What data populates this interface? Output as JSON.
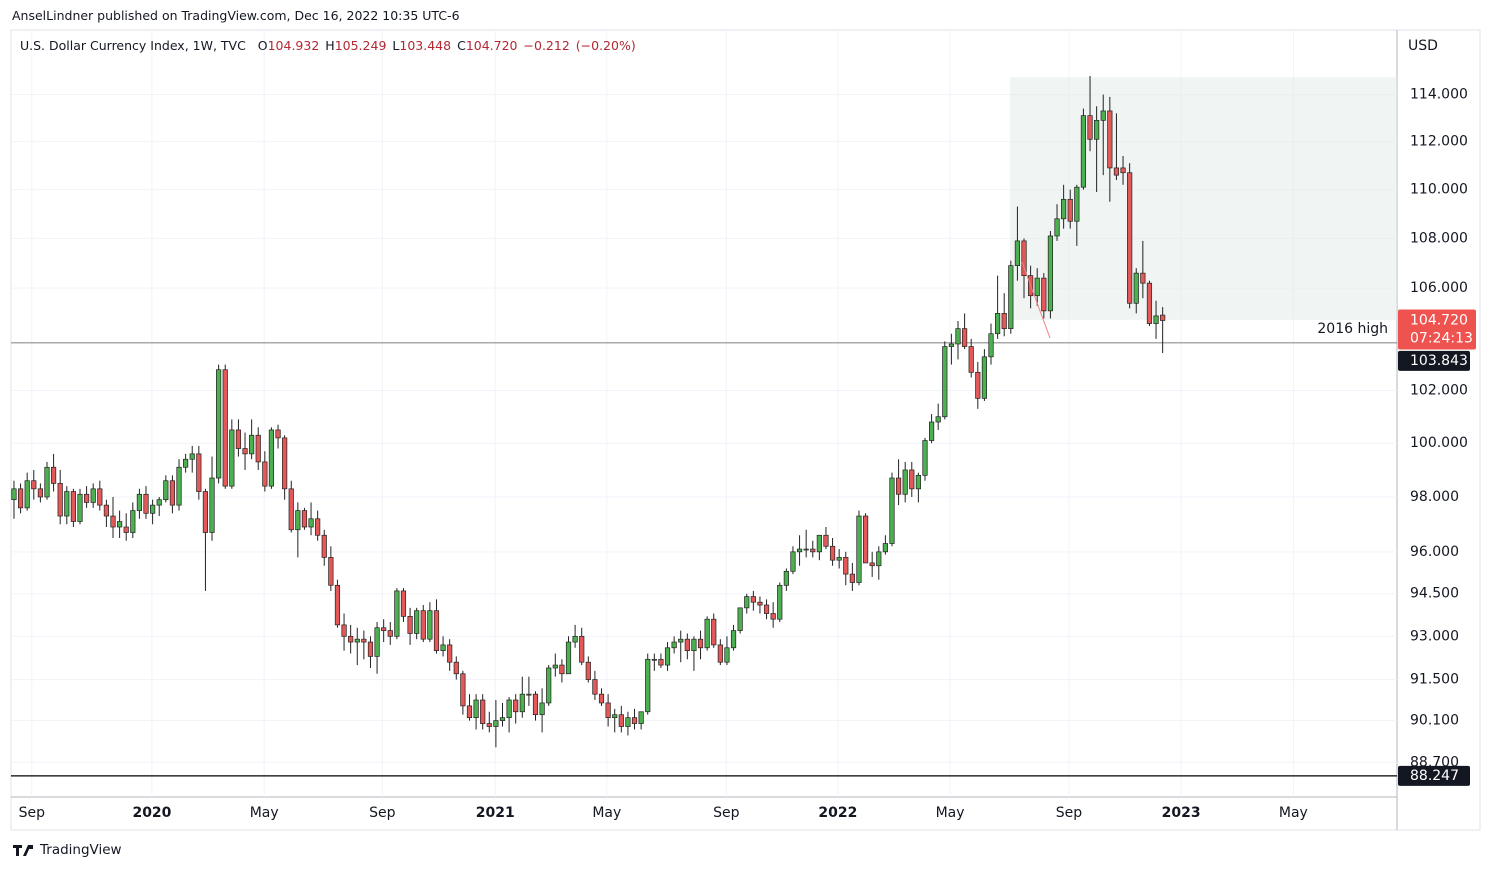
{
  "header": {
    "publisher": "AnselLindner published on TradingView.com, Dec 16, 2022 10:35 UTC-6"
  },
  "footer": {
    "brand": "TradingView"
  },
  "chart_data": {
    "type": "candlestick",
    "title": "U.S. Dollar Currency Index, 1W, TVC",
    "legend": [
      {
        "key": "O",
        "value": 104.932
      },
      {
        "key": "H",
        "value": 105.249
      },
      {
        "key": "L",
        "value": 103.448
      },
      {
        "key": "C",
        "value": {
          "value": 104.72,
          "label": "104.720"
        }
      }
    ],
    "change": {
      "value": -0.212,
      "label": "−0.212"
    },
    "change_pct": {
      "value": -0.2,
      "label": "(−0.20%)"
    },
    "currency": "USD",
    "yscale": "log",
    "grid": true,
    "up_color": "#4caf50",
    "down_color": "#e35858",
    "ylim": [
      87.55,
      116.8
    ],
    "yticks": [
      {
        "value": 88.7,
        "label": "88.700"
      },
      {
        "value": 90.1,
        "label": "90.100"
      },
      {
        "value": 91.5,
        "label": "91.500"
      },
      {
        "value": 93,
        "label": "93.000"
      },
      {
        "value": 94.5,
        "label": "94.500"
      },
      {
        "value": 96,
        "label": "96.000"
      },
      {
        "value": 98,
        "label": "98.000"
      },
      {
        "value": 100,
        "label": "100.000"
      },
      {
        "value": 102,
        "label": "102.000"
      },
      {
        "value": 106,
        "label": "106.000"
      },
      {
        "value": 108,
        "label": "108.000"
      },
      {
        "value": 110,
        "label": "110.000"
      },
      {
        "value": 112,
        "label": "112.000"
      },
      {
        "value": 114,
        "label": "114.000"
      }
    ],
    "xlim": [
      -0.3,
      209.5
    ],
    "xticks": [
      {
        "value": 2.7,
        "label": "Sep"
      },
      {
        "value": 20.9,
        "label": "2020"
      },
      {
        "value": 37.9,
        "label": "May"
      },
      {
        "value": 55.8,
        "label": "Sep"
      },
      {
        "value": 72.9,
        "label": "2021"
      },
      {
        "value": 89.8,
        "label": "May"
      },
      {
        "value": 107.9,
        "label": "Sep"
      },
      {
        "value": 124.8,
        "label": "2022"
      },
      {
        "value": 141.8,
        "label": "May"
      },
      {
        "value": 159.8,
        "label": "Sep"
      },
      {
        "value": 176.8,
        "label": "2023"
      },
      {
        "value": 193.8,
        "label": "May"
      }
    ],
    "last_price": {
      "value": 104.72,
      "label": "104.720"
    },
    "countdown": "07:24:13",
    "price_lines": [
      {
        "value": 103.843,
        "label": "103.843",
        "annotation": "2016 high"
      },
      {
        "value": 88.247,
        "label": "88.247"
      }
    ],
    "zone": {
      "xlim": [
        150.9,
        209.5
      ],
      "ylim": [
        104.75,
        114.75
      ]
    },
    "candles": [
      [
        97.9,
        98.6,
        97.2,
        98.3
      ],
      [
        98.3,
        98.5,
        97.4,
        97.6
      ],
      [
        97.6,
        98.9,
        97.5,
        98.6
      ],
      [
        98.6,
        99.0,
        97.9,
        98.3
      ],
      [
        98.3,
        98.5,
        97.8,
        98.0
      ],
      [
        98.0,
        99.3,
        97.9,
        99.1
      ],
      [
        99.1,
        99.6,
        98.2,
        98.5
      ],
      [
        98.5,
        99.0,
        97.0,
        97.3
      ],
      [
        97.3,
        98.4,
        97.0,
        98.2
      ],
      [
        98.2,
        98.3,
        96.9,
        97.1
      ],
      [
        97.1,
        98.3,
        97.0,
        98.1
      ],
      [
        98.1,
        98.4,
        97.6,
        97.8
      ],
      [
        97.8,
        98.5,
        97.6,
        98.3
      ],
      [
        98.3,
        98.6,
        97.5,
        97.7
      ],
      [
        97.7,
        97.9,
        96.9,
        97.3
      ],
      [
        97.3,
        98.0,
        96.5,
        96.9
      ],
      [
        96.9,
        97.5,
        96.5,
        97.1
      ],
      [
        96.9,
        97.4,
        96.4,
        96.7
      ],
      [
        96.7,
        97.8,
        96.5,
        97.5
      ],
      [
        97.5,
        98.3,
        97.2,
        98.1
      ],
      [
        98.1,
        98.4,
        97.2,
        97.4
      ],
      [
        97.4,
        97.9,
        97.0,
        97.7
      ],
      [
        97.7,
        98.0,
        97.3,
        97.9
      ],
      [
        97.9,
        98.8,
        97.8,
        98.6
      ],
      [
        98.6,
        98.8,
        97.4,
        97.7
      ],
      [
        97.7,
        99.4,
        97.5,
        99.1
      ],
      [
        99.1,
        99.6,
        98.9,
        99.4
      ],
      [
        99.4,
        99.9,
        98.9,
        99.6
      ],
      [
        99.6,
        99.9,
        97.9,
        98.2
      ],
      [
        98.2,
        98.3,
        94.6,
        96.7
      ],
      [
        96.7,
        99.5,
        96.4,
        98.7
      ],
      [
        98.7,
        103.0,
        98.5,
        102.8
      ],
      [
        102.8,
        103.0,
        98.3,
        98.4
      ],
      [
        98.4,
        100.9,
        98.3,
        100.5
      ],
      [
        100.5,
        100.9,
        99.5,
        99.8
      ],
      [
        99.8,
        100.4,
        99.0,
        99.6
      ],
      [
        99.6,
        100.9,
        99.4,
        100.3
      ],
      [
        100.3,
        100.6,
        99.0,
        99.3
      ],
      [
        99.3,
        99.7,
        98.2,
        98.4
      ],
      [
        98.4,
        100.6,
        98.3,
        100.5
      ],
      [
        100.5,
        100.7,
        99.8,
        100.2
      ],
      [
        100.2,
        100.3,
        97.9,
        98.3
      ],
      [
        98.3,
        98.6,
        96.7,
        96.8
      ],
      [
        96.8,
        97.8,
        95.8,
        97.5
      ],
      [
        97.5,
        97.6,
        96.8,
        96.9
      ],
      [
        96.9,
        97.8,
        96.6,
        97.2
      ],
      [
        97.2,
        97.5,
        96.4,
        96.6
      ],
      [
        96.6,
        96.8,
        95.5,
        95.8
      ],
      [
        95.8,
        96.2,
        94.6,
        94.8
      ],
      [
        94.8,
        95.0,
        93.3,
        93.4
      ],
      [
        93.4,
        93.8,
        92.5,
        93.0
      ],
      [
        93.0,
        93.4,
        92.4,
        92.8
      ],
      [
        92.8,
        93.3,
        92.0,
        92.9
      ],
      [
        92.9,
        93.2,
        92.2,
        92.8
      ],
      [
        92.8,
        93.0,
        91.9,
        92.3
      ],
      [
        92.3,
        93.5,
        91.7,
        93.3
      ],
      [
        93.3,
        93.6,
        92.8,
        93.2
      ],
      [
        93.2,
        93.5,
        92.7,
        93.0
      ],
      [
        93.0,
        94.7,
        92.9,
        94.6
      ],
      [
        94.6,
        94.7,
        93.5,
        93.7
      ],
      [
        93.7,
        94.0,
        92.7,
        93.1
      ],
      [
        93.1,
        94.0,
        92.9,
        93.9
      ],
      [
        93.9,
        94.1,
        92.8,
        92.9
      ],
      [
        92.9,
        94.2,
        92.8,
        93.9
      ],
      [
        93.9,
        94.3,
        92.4,
        92.5
      ],
      [
        92.5,
        93.0,
        92.3,
        92.7
      ],
      [
        92.7,
        92.9,
        91.8,
        92.1
      ],
      [
        92.1,
        92.3,
        91.5,
        91.7
      ],
      [
        91.7,
        91.8,
        90.3,
        90.6
      ],
      [
        90.6,
        91.0,
        90.1,
        90.2
      ],
      [
        90.2,
        91.0,
        89.8,
        90.8
      ],
      [
        90.8,
        91.0,
        89.8,
        90.0
      ],
      [
        90.0,
        90.4,
        89.7,
        89.9
      ],
      [
        89.9,
        90.8,
        89.2,
        90.1
      ],
      [
        90.1,
        90.7,
        89.9,
        90.2
      ],
      [
        90.2,
        90.9,
        89.7,
        90.8
      ],
      [
        90.8,
        91.0,
        90.0,
        90.4
      ],
      [
        90.4,
        91.6,
        90.2,
        91.0
      ],
      [
        91.0,
        91.6,
        90.6,
        91.0
      ],
      [
        91.0,
        91.1,
        90.1,
        90.3
      ],
      [
        90.3,
        91.2,
        89.7,
        90.7
      ],
      [
        90.7,
        92.0,
        90.6,
        91.9
      ],
      [
        91.9,
        92.4,
        91.6,
        92.0
      ],
      [
        92.0,
        92.2,
        91.4,
        91.7
      ],
      [
        91.7,
        93.0,
        91.7,
        92.8
      ],
      [
        92.8,
        93.4,
        92.6,
        93.0
      ],
      [
        93.0,
        93.3,
        92.0,
        92.1
      ],
      [
        92.1,
        92.3,
        91.4,
        91.5
      ],
      [
        91.5,
        91.8,
        90.8,
        91.0
      ],
      [
        91.0,
        91.2,
        90.6,
        90.7
      ],
      [
        90.7,
        91.0,
        89.9,
        90.2
      ],
      [
        90.2,
        90.5,
        89.7,
        90.3
      ],
      [
        90.3,
        90.6,
        89.7,
        89.9
      ],
      [
        89.9,
        90.4,
        89.6,
        90.2
      ],
      [
        90.2,
        90.5,
        89.8,
        90.0
      ],
      [
        90.0,
        90.4,
        89.8,
        90.4
      ],
      [
        90.4,
        92.4,
        90.3,
        92.2
      ],
      [
        92.2,
        92.4,
        91.8,
        92.2
      ],
      [
        92.2,
        92.4,
        91.9,
        92.0
      ],
      [
        92.0,
        92.8,
        91.8,
        92.6
      ],
      [
        92.6,
        93.0,
        92.4,
        92.8
      ],
      [
        92.8,
        93.2,
        92.1,
        92.9
      ],
      [
        92.9,
        93.1,
        92.2,
        92.5
      ],
      [
        92.5,
        93.0,
        91.8,
        92.9
      ],
      [
        92.9,
        93.2,
        92.2,
        92.6
      ],
      [
        92.6,
        93.7,
        92.5,
        93.6
      ],
      [
        93.6,
        93.8,
        92.6,
        92.7
      ],
      [
        92.7,
        92.9,
        92.0,
        92.1
      ],
      [
        92.1,
        93.0,
        92.0,
        92.6
      ],
      [
        92.6,
        93.4,
        92.5,
        93.2
      ],
      [
        93.2,
        94.0,
        93.1,
        94.0
      ],
      [
        94.0,
        94.5,
        93.8,
        94.4
      ],
      [
        94.4,
        94.6,
        93.9,
        94.2
      ],
      [
        94.2,
        94.4,
        93.8,
        94.1
      ],
      [
        94.1,
        94.3,
        93.6,
        93.8
      ],
      [
        93.8,
        94.2,
        93.3,
        93.6
      ],
      [
        93.6,
        94.9,
        93.5,
        94.8
      ],
      [
        94.8,
        95.4,
        94.6,
        95.3
      ],
      [
        95.3,
        96.2,
        95.2,
        96.0
      ],
      [
        96.0,
        96.6,
        95.5,
        96.1
      ],
      [
        96.1,
        96.8,
        95.8,
        96.1
      ],
      [
        96.1,
        96.4,
        95.8,
        96.0
      ],
      [
        96.0,
        96.6,
        95.7,
        96.6
      ],
      [
        96.6,
        96.9,
        96.1,
        96.2
      ],
      [
        96.2,
        96.5,
        95.5,
        95.7
      ],
      [
        95.7,
        96.1,
        95.4,
        95.8
      ],
      [
        95.8,
        96.0,
        94.8,
        95.2
      ],
      [
        95.2,
        95.6,
        94.6,
        94.9
      ],
      [
        94.9,
        97.5,
        94.8,
        97.3
      ],
      [
        97.3,
        97.4,
        95.6,
        95.6
      ],
      [
        95.6,
        96.0,
        95.1,
        95.5
      ],
      [
        95.5,
        96.2,
        95.0,
        96.0
      ],
      [
        96.0,
        96.6,
        95.9,
        96.3
      ],
      [
        96.3,
        98.9,
        96.2,
        98.7
      ],
      [
        98.7,
        99.4,
        97.7,
        98.1
      ],
      [
        98.1,
        99.3,
        97.8,
        99.0
      ],
      [
        99.0,
        99.3,
        98.0,
        98.3
      ],
      [
        98.3,
        98.9,
        97.8,
        98.8
      ],
      [
        98.8,
        100.2,
        98.6,
        100.1
      ],
      [
        100.1,
        101.1,
        100.0,
        100.8
      ],
      [
        100.8,
        101.5,
        100.5,
        101.0
      ],
      [
        101.0,
        103.9,
        100.9,
        103.7
      ],
      [
        103.7,
        104.2,
        103.0,
        103.8
      ],
      [
        103.8,
        104.7,
        103.2,
        104.4
      ],
      [
        104.4,
        105.0,
        103.6,
        103.7
      ],
      [
        103.7,
        104.0,
        102.5,
        102.7
      ],
      [
        102.7,
        103.1,
        101.3,
        101.7
      ],
      [
        101.7,
        103.6,
        101.6,
        103.3
      ],
      [
        103.3,
        104.6,
        103.0,
        104.2
      ],
      [
        104.2,
        106.5,
        104.0,
        105.0
      ],
      [
        105.0,
        105.8,
        104.1,
        104.4
      ],
      [
        104.4,
        107.1,
        104.2,
        106.9
      ],
      [
        106.9,
        109.3,
        106.3,
        107.9
      ],
      [
        107.9,
        108.0,
        105.6,
        106.5
      ],
      [
        106.5,
        106.9,
        105.2,
        105.7
      ],
      [
        105.7,
        106.8,
        105.3,
        106.4
      ],
      [
        106.4,
        106.6,
        104.8,
        105.1
      ],
      [
        105.1,
        108.3,
        104.8,
        108.1
      ],
      [
        108.1,
        109.4,
        107.9,
        108.8
      ],
      [
        108.8,
        110.2,
        108.4,
        109.6
      ],
      [
        109.6,
        110.0,
        108.4,
        108.7
      ],
      [
        108.7,
        110.2,
        107.7,
        110.1
      ],
      [
        110.1,
        113.4,
        110.0,
        113.1
      ],
      [
        113.1,
        114.8,
        111.6,
        112.1
      ],
      [
        112.1,
        113.5,
        109.9,
        112.9
      ],
      [
        112.9,
        114.0,
        110.6,
        113.3
      ],
      [
        113.3,
        113.9,
        109.5,
        110.9
      ],
      [
        110.9,
        113.2,
        110.4,
        110.6
      ],
      [
        110.9,
        111.4,
        110.2,
        110.7
      ],
      [
        110.7,
        111.1,
        105.2,
        105.4
      ],
      [
        105.4,
        106.8,
        105.0,
        106.6
      ],
      [
        106.6,
        107.9,
        105.6,
        106.2
      ],
      [
        106.2,
        106.3,
        104.5,
        104.6
      ],
      [
        104.6,
        105.5,
        104.0,
        104.9
      ],
      [
        104.932,
        105.249,
        103.448,
        104.72
      ]
    ]
  }
}
